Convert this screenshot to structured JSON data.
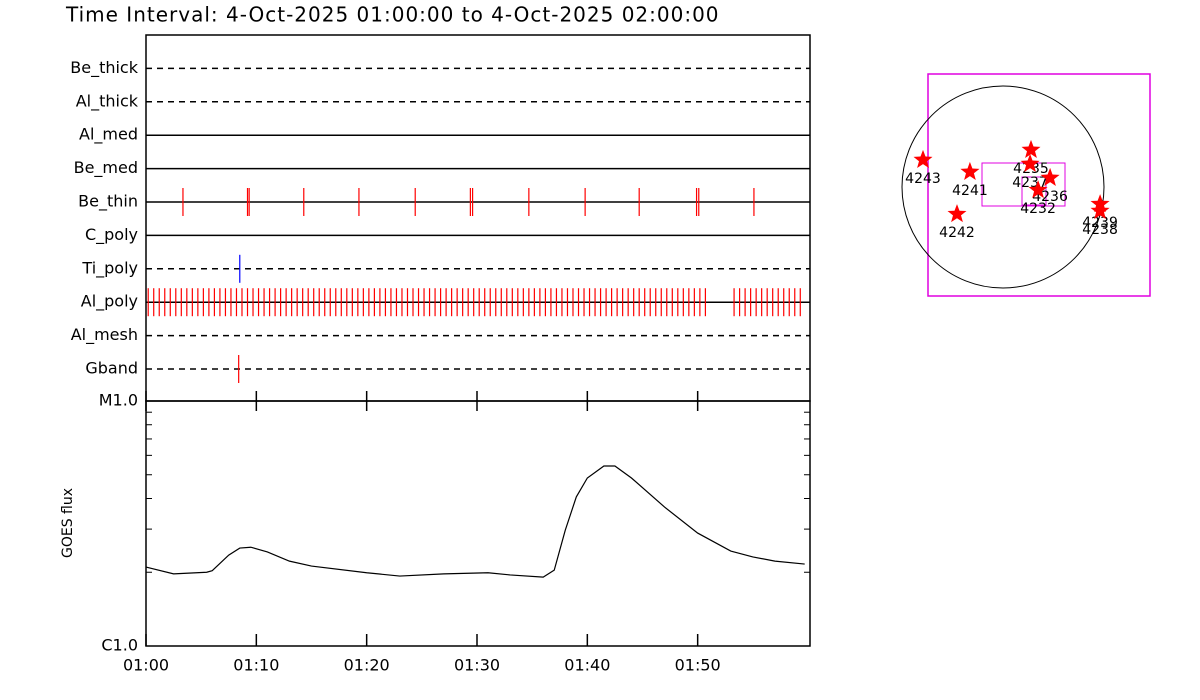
{
  "title": "Time Interval:  4-Oct-2025 01:00:00 to  4-Oct-2025 02:00:00",
  "chart_data": [
    {
      "type": "event",
      "xlim": [
        0,
        60
      ],
      "rows": [
        {
          "label": "Be_thick",
          "line": "dashed",
          "color": "#ff0000",
          "events": []
        },
        {
          "label": "Al_thick",
          "line": "dashed",
          "color": "#ff0000",
          "events": []
        },
        {
          "label": "Al_med",
          "line": "solid",
          "color": "#ff0000",
          "events": []
        },
        {
          "label": "Be_med",
          "line": "solid",
          "color": "#ff0000",
          "events": []
        },
        {
          "label": "Be_thin",
          "line": "solid",
          "color": "#ff0000",
          "events": [
            3.35,
            9.2,
            9.35,
            14.3,
            19.3,
            24.4,
            29.4,
            29.6,
            34.7,
            39.8,
            44.7,
            49.9,
            50.1,
            55.1
          ]
        },
        {
          "label": "C_poly",
          "line": "solid",
          "color": "#ff0000",
          "events": []
        },
        {
          "label": "Ti_poly",
          "line": "dashed",
          "color": "#0000ff",
          "events": [
            8.5
          ]
        },
        {
          "label": "Al_poly",
          "line": "solid",
          "color": "#ff0000",
          "events": [
            0.2,
            0.7,
            1.2,
            1.7,
            2.2,
            2.7,
            3.2,
            3.7,
            4.2,
            4.7,
            5.2,
            5.7,
            6.2,
            6.7,
            7.2,
            7.7,
            8.2,
            8.7,
            9.2,
            9.7,
            10.2,
            10.7,
            11.2,
            11.7,
            12.2,
            12.7,
            13.2,
            13.7,
            14.2,
            14.7,
            15.2,
            15.7,
            16.2,
            16.7,
            17.2,
            17.7,
            18.2,
            18.7,
            19.2,
            19.7,
            20.2,
            20.7,
            21.2,
            21.7,
            22.2,
            22.7,
            23.2,
            23.7,
            24.2,
            24.7,
            25.2,
            25.7,
            26.2,
            26.7,
            27.2,
            27.7,
            28.2,
            28.7,
            29.2,
            29.7,
            30.2,
            30.7,
            31.2,
            31.7,
            32.2,
            32.7,
            33.2,
            33.7,
            34.2,
            34.7,
            35.2,
            35.7,
            36.2,
            36.7,
            37.2,
            37.7,
            38.2,
            38.7,
            39.2,
            39.7,
            40.2,
            40.7,
            41.2,
            41.7,
            42.2,
            42.7,
            43.2,
            43.7,
            44.2,
            44.7,
            45.2,
            45.7,
            46.2,
            46.7,
            47.2,
            47.7,
            48.2,
            48.7,
            49.2,
            49.7,
            50.2,
            50.7,
            53.3,
            53.8,
            54.3,
            54.8,
            55.3,
            55.8,
            56.3,
            56.8,
            57.3,
            57.8,
            58.3,
            58.8,
            59.3
          ]
        },
        {
          "label": "Al_mesh",
          "line": "dashed",
          "color": "#ff0000",
          "events": []
        },
        {
          "label": "Gband",
          "line": "dashed",
          "color": "#ff0000",
          "events": [
            8.4
          ]
        }
      ]
    },
    {
      "type": "line",
      "ylabel": "GOES flux",
      "log_y": true,
      "color": "#000000",
      "x": [
        0,
        2.5,
        5.5,
        6,
        7.5,
        8.5,
        9.5,
        11,
        13,
        15,
        20,
        23,
        27,
        31,
        33,
        36,
        37,
        38,
        39,
        40,
        41.5,
        42.5,
        44,
        47,
        50,
        53,
        55,
        57,
        59.7
      ],
      "values": [
        2.1e-06,
        1.97e-06,
        2e-06,
        2.03e-06,
        2.35e-06,
        2.51e-06,
        2.53e-06,
        2.42e-06,
        2.22e-06,
        2.12e-06,
        1.99e-06,
        1.93e-06,
        1.97e-06,
        1.99e-06,
        1.95e-06,
        1.91e-06,
        2.04e-06,
        2.97e-06,
        4.06e-06,
        4.85e-06,
        5.43e-06,
        5.43e-06,
        4.85e-06,
        3.69e-06,
        2.89e-06,
        2.44e-06,
        2.31e-06,
        2.22e-06,
        2.16e-06
      ],
      "xlim": [
        0,
        60
      ],
      "xticks": [
        {
          "value": 0,
          "label": "01:00"
        },
        {
          "value": 10,
          "label": "01:10"
        },
        {
          "value": 20,
          "label": "01:20"
        },
        {
          "value": 30,
          "label": "01:30"
        },
        {
          "value": 40,
          "label": "01:40"
        },
        {
          "value": 50,
          "label": "01:50"
        }
      ],
      "ylim": [
        1e-06,
        1e-05
      ],
      "yticks": [
        {
          "value": 1e-06,
          "label": "C1.0"
        },
        {
          "value": 1e-05,
          "label": "M1.0"
        }
      ],
      "minor_yticks": [
        2e-06,
        3e-06,
        4e-06,
        5e-06,
        6e-06,
        7e-06,
        8e-06,
        9e-06
      ]
    },
    {
      "type": "scatter",
      "color": "#ff0000",
      "xlim": [
        -1140,
        1140
      ],
      "ylim": [
        -1140,
        1140
      ],
      "labels": [
        "4243",
        "4241",
        "4242",
        "4235",
        "4237",
        "4236",
        "4232",
        "4239",
        "4238"
      ],
      "x": [
        -760,
        -314,
        -437,
        266,
        257,
        447,
        333,
        922,
        922
      ],
      "y": [
        257,
        143,
        -257,
        352,
        219,
        86,
        -29,
        -162,
        -228
      ]
    }
  ]
}
